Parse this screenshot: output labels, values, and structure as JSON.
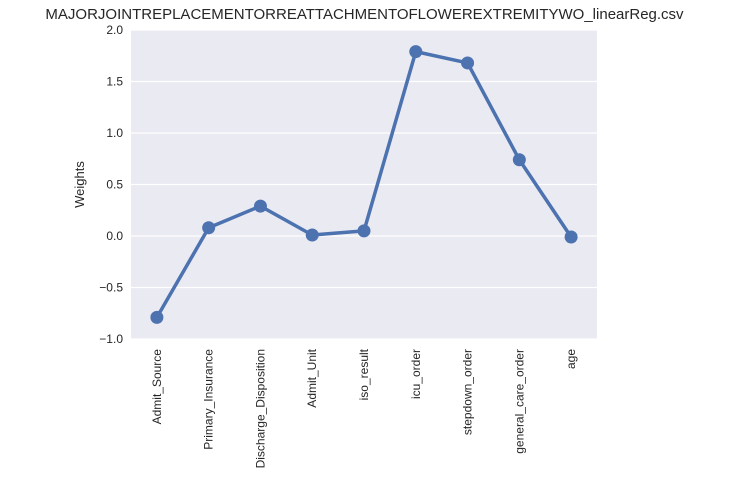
{
  "chart_data": {
    "type": "line",
    "title": "MAJORJOINTREPLACEMENTORREATTACHMENTOFLOWEREXTREMITYWO_linearReg.csv",
    "xlabel": "",
    "ylabel": "Weights",
    "categories": [
      "Admit_Source",
      "Primary_Insurance",
      "Discharge_Disposition",
      "Admit_Unit",
      "iso_result",
      "icu_order",
      "stepdown_order",
      "general_care_order",
      "age"
    ],
    "series": [
      {
        "values": [
          -0.79,
          0.08,
          0.29,
          0.01,
          0.05,
          1.79,
          1.68,
          0.74,
          -0.01
        ]
      }
    ],
    "ylim": [
      -1.0,
      2.0
    ],
    "yticks": [
      -1.0,
      -0.5,
      0.0,
      0.5,
      1.0,
      1.5,
      2.0
    ],
    "ytick_labels": [
      "−1.0",
      "−0.5",
      "0.0",
      "0.5",
      "1.0",
      "1.5",
      "2.0"
    ],
    "grid": true,
    "colors": {
      "line": "#4c72b0",
      "background": "#eaeaf2",
      "grid": "#ffffff"
    }
  }
}
